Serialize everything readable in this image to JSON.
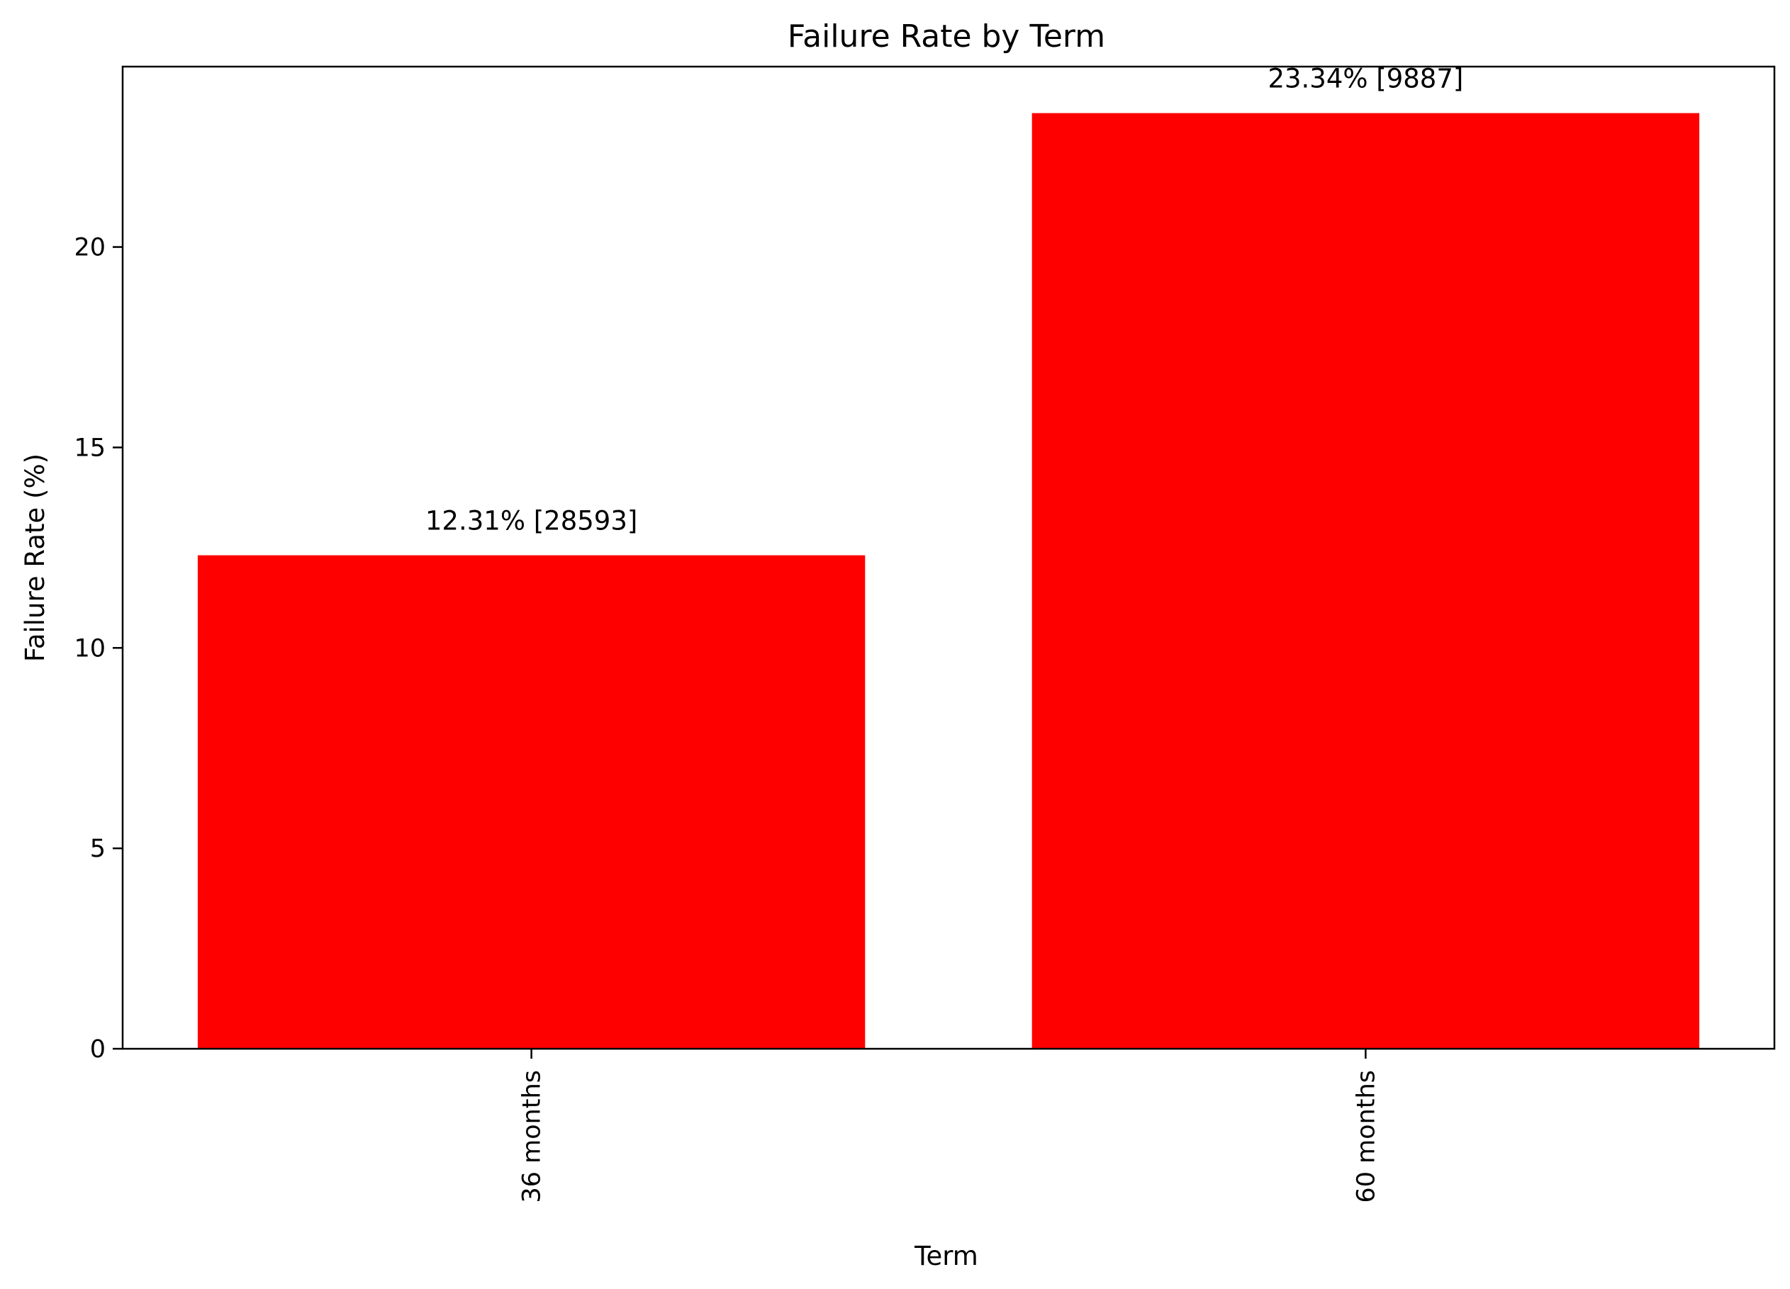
{
  "chart_data": {
    "type": "bar",
    "title": "Failure Rate by Term",
    "xlabel": "Term",
    "ylabel": "Failure Rate (%)",
    "categories": [
      "36 months",
      "60 months"
    ],
    "values": [
      12.31,
      23.34
    ],
    "data_labels": [
      "12.31% [28593]",
      "23.34% [9887]"
    ],
    "ylim": [
      0,
      24.5
    ],
    "yticks": [
      0,
      5,
      10,
      15,
      20
    ],
    "xtick_rotation": "vertical",
    "grid": false,
    "legend": "none",
    "bar_color": "#ff0000"
  }
}
